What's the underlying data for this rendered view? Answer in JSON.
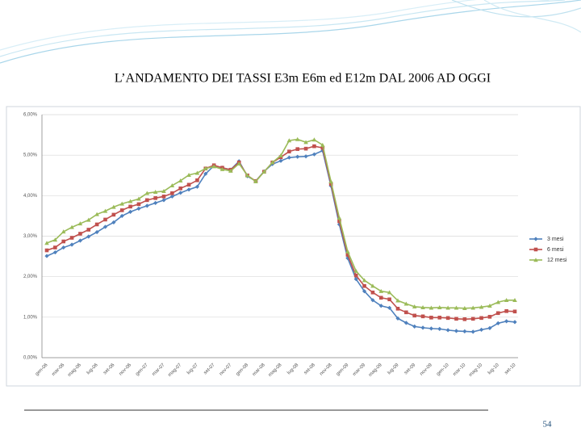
{
  "page_number": "54",
  "chart_data": {
    "type": "line",
    "title": "L’ANDAMENTO DEI TASSI  E3m E6m ed E12m  DAL 2006 AD OGGI",
    "categories": [
      "gen-06",
      null,
      "mar-06",
      null,
      "mag-06",
      null,
      "lug-06",
      null,
      "set-06",
      null,
      "nov-06",
      null,
      "gen-07",
      null,
      "mar-07",
      null,
      "mag-07",
      null,
      "lug-07",
      null,
      "set-07",
      null,
      "nov-07",
      null,
      "gen-08",
      null,
      "mar-08",
      null,
      "mag-08",
      null,
      "lug-08",
      null,
      "set-08",
      null,
      "nov-08",
      null,
      "gen-09",
      null,
      "mar-09",
      null,
      "mag-09",
      null,
      "lug-09",
      null,
      "set-09",
      null,
      "nov-09",
      null,
      "gen-10",
      null,
      "mar-10",
      null,
      "mag-10",
      null,
      "lug-10",
      null,
      "set-10"
    ],
    "series": [
      {
        "name": "3 mesi",
        "color": "#4f81bd",
        "marker": "diamond",
        "values": [
          2.51,
          2.6,
          2.72,
          2.79,
          2.89,
          2.99,
          3.1,
          3.23,
          3.34,
          3.5,
          3.6,
          3.68,
          3.75,
          3.82,
          3.89,
          3.98,
          4.07,
          4.15,
          4.22,
          4.54,
          4.74,
          4.69,
          4.64,
          4.85,
          4.48,
          4.36,
          4.6,
          4.78,
          4.86,
          4.94,
          4.96,
          4.97,
          5.02,
          5.11,
          4.24,
          3.29,
          2.46,
          1.94,
          1.64,
          1.42,
          1.28,
          1.23,
          0.97,
          0.86,
          0.77,
          0.74,
          0.72,
          0.71,
          0.68,
          0.66,
          0.65,
          0.64,
          0.69,
          0.73,
          0.85,
          0.9,
          0.88
        ]
      },
      {
        "name": "6 mesi",
        "color": "#c0504d",
        "marker": "square",
        "values": [
          2.65,
          2.72,
          2.87,
          2.96,
          3.06,
          3.16,
          3.29,
          3.41,
          3.53,
          3.64,
          3.73,
          3.79,
          3.89,
          3.94,
          3.98,
          4.06,
          4.18,
          4.27,
          4.38,
          4.67,
          4.75,
          4.69,
          4.64,
          4.82,
          4.5,
          4.36,
          4.59,
          4.82,
          4.95,
          5.09,
          5.15,
          5.16,
          5.22,
          5.18,
          4.29,
          3.37,
          2.54,
          2.03,
          1.77,
          1.61,
          1.48,
          1.44,
          1.21,
          1.12,
          1.04,
          1.02,
          0.99,
          0.99,
          0.98,
          0.96,
          0.95,
          0.96,
          0.98,
          1.01,
          1.1,
          1.15,
          1.14
        ]
      },
      {
        "name": "12 mesi",
        "color": "#9bbb59",
        "marker": "triangle",
        "values": [
          2.83,
          2.91,
          3.11,
          3.22,
          3.31,
          3.4,
          3.54,
          3.62,
          3.72,
          3.8,
          3.86,
          3.92,
          4.06,
          4.09,
          4.11,
          4.25,
          4.37,
          4.51,
          4.56,
          4.67,
          4.72,
          4.65,
          4.61,
          4.79,
          4.5,
          4.35,
          4.59,
          4.82,
          4.99,
          5.36,
          5.39,
          5.32,
          5.38,
          5.25,
          4.35,
          3.45,
          2.62,
          2.14,
          1.91,
          1.77,
          1.64,
          1.61,
          1.41,
          1.33,
          1.26,
          1.24,
          1.23,
          1.24,
          1.23,
          1.23,
          1.22,
          1.23,
          1.25,
          1.28,
          1.37,
          1.42,
          1.42
        ]
      }
    ],
    "ylim": [
      0,
      6
    ],
    "yticks": [
      {
        "value": 0,
        "label": "0,00%"
      },
      {
        "value": 1,
        "label": "1,00%"
      },
      {
        "value": 2,
        "label": "2,00%"
      },
      {
        "value": 3,
        "label": "3,00%"
      },
      {
        "value": 4,
        "label": "4,00%"
      },
      {
        "value": 5,
        "label": "5,00%"
      },
      {
        "value": 6,
        "label": "6,00%"
      }
    ],
    "grid": true,
    "legend": "right"
  }
}
